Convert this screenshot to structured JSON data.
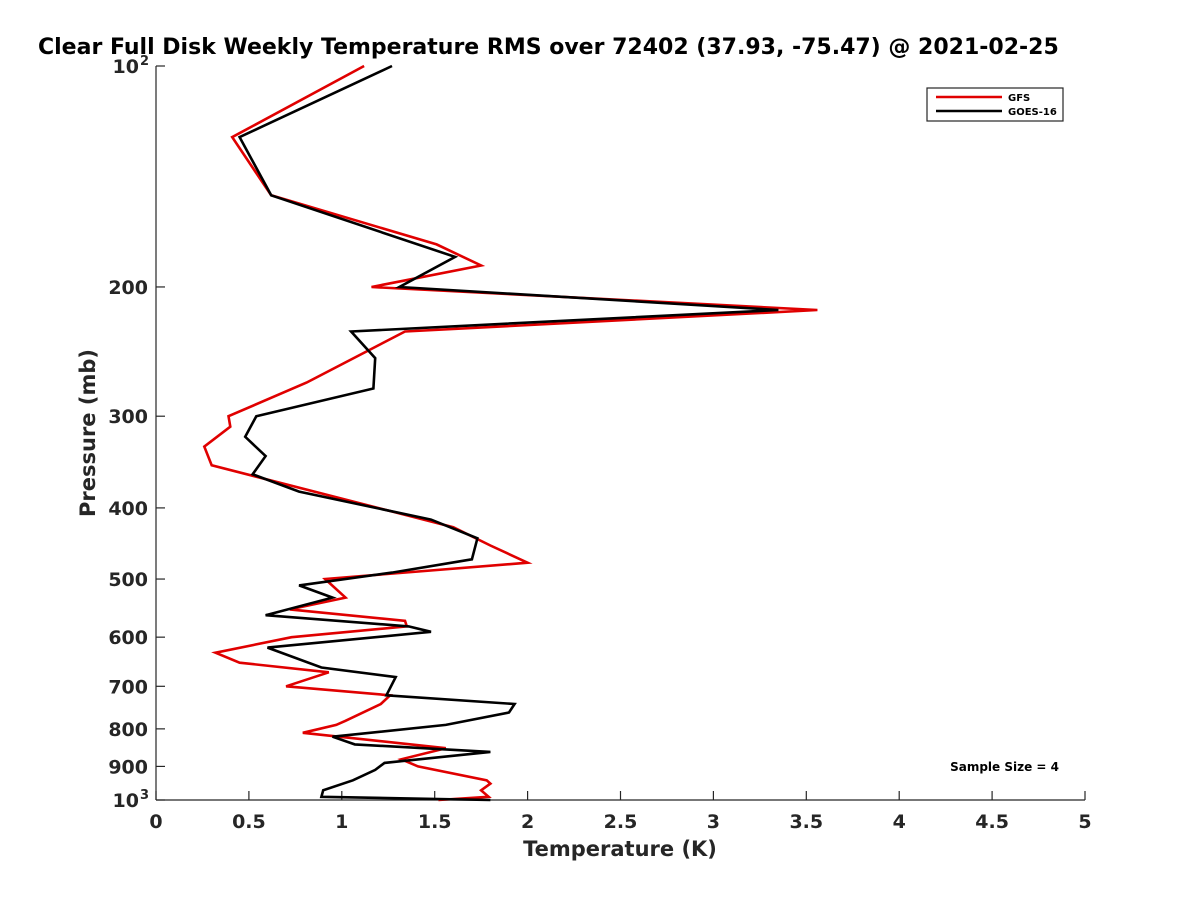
{
  "chart_data": {
    "type": "line",
    "title": "Clear Full Disk Weekly Temperature RMS over 72402 (37.93, -75.47) @ 2021-02-25",
    "xlabel": "Temperature (K)",
    "ylabel": "Pressure (mb)",
    "xlim": [
      0,
      5
    ],
    "ylim": [
      100,
      1000
    ],
    "yscale": "log",
    "yreversed": true,
    "x_ticks": [
      0,
      0.5,
      1,
      1.5,
      2,
      2.5,
      3,
      3.5,
      4,
      4.5,
      5
    ],
    "x_tick_labels": [
      "0",
      "0.5",
      "1",
      "1.5",
      "2",
      "2.5",
      "3",
      "3.5",
      "4",
      "4.5",
      "5"
    ],
    "y_ticks": [
      100,
      200,
      300,
      400,
      500,
      600,
      700,
      800,
      900,
      1000
    ],
    "y_tick_labels": [
      {
        "base": "10",
        "exp": "2"
      },
      {
        "base": "200"
      },
      {
        "base": "300"
      },
      {
        "base": "400"
      },
      {
        "base": "500"
      },
      {
        "base": "600"
      },
      {
        "base": "700"
      },
      {
        "base": "800"
      },
      {
        "base": "900"
      },
      {
        "base": "10",
        "exp": "3"
      }
    ],
    "legend_position": "top-right",
    "annotation": "Sample Size = 4",
    "series": [
      {
        "name": "GFS",
        "color": "#e00000",
        "points": [
          [
            1.12,
            100
          ],
          [
            0.41,
            125
          ],
          [
            0.62,
            150
          ],
          [
            1.51,
            175
          ],
          [
            1.75,
            187
          ],
          [
            1.16,
            200
          ],
          [
            3.56,
            215
          ],
          [
            1.34,
            230
          ],
          [
            0.81,
            270
          ],
          [
            0.39,
            300
          ],
          [
            0.4,
            310
          ],
          [
            0.26,
            330
          ],
          [
            0.3,
            350
          ],
          [
            1.6,
            425
          ],
          [
            1.8,
            450
          ],
          [
            2.0,
            475
          ],
          [
            0.91,
            500
          ],
          [
            1.02,
            530
          ],
          [
            0.72,
            550
          ],
          [
            1.34,
            570
          ],
          [
            1.35,
            580
          ],
          [
            0.73,
            600
          ],
          [
            0.32,
            630
          ],
          [
            0.45,
            650
          ],
          [
            0.93,
            670
          ],
          [
            0.7,
            700
          ],
          [
            1.26,
            720
          ],
          [
            1.21,
            740
          ],
          [
            1.02,
            780
          ],
          [
            0.97,
            790
          ],
          [
            0.79,
            810
          ],
          [
            1.56,
            850
          ],
          [
            1.32,
            880
          ],
          [
            1.41,
            900
          ],
          [
            1.78,
            940
          ],
          [
            1.8,
            950
          ],
          [
            1.75,
            970
          ],
          [
            1.79,
            990
          ],
          [
            1.52,
            1000
          ]
        ]
      },
      {
        "name": "GOES-16",
        "color": "#000000",
        "points": [
          [
            1.27,
            100
          ],
          [
            0.45,
            125
          ],
          [
            0.62,
            150
          ],
          [
            1.61,
            182
          ],
          [
            1.31,
            200
          ],
          [
            3.35,
            215
          ],
          [
            1.05,
            230
          ],
          [
            1.18,
            250
          ],
          [
            1.17,
            275
          ],
          [
            0.54,
            300
          ],
          [
            0.48,
            320
          ],
          [
            0.59,
            340
          ],
          [
            0.52,
            360
          ],
          [
            0.77,
            380
          ],
          [
            1.48,
            415
          ],
          [
            1.73,
            440
          ],
          [
            1.7,
            470
          ],
          [
            1.27,
            490
          ],
          [
            0.77,
            510
          ],
          [
            0.95,
            530
          ],
          [
            0.59,
            560
          ],
          [
            1.36,
            580
          ],
          [
            1.48,
            590
          ],
          [
            0.6,
            620
          ],
          [
            0.89,
            660
          ],
          [
            1.29,
            680
          ],
          [
            1.24,
            720
          ],
          [
            1.93,
            740
          ],
          [
            1.9,
            760
          ],
          [
            1.56,
            790
          ],
          [
            0.95,
            820
          ],
          [
            1.07,
            840
          ],
          [
            1.8,
            860
          ],
          [
            1.23,
            890
          ],
          [
            1.18,
            910
          ],
          [
            1.06,
            940
          ],
          [
            0.9,
            970
          ],
          [
            0.89,
            990
          ],
          [
            1.8,
            1000
          ]
        ]
      }
    ]
  }
}
